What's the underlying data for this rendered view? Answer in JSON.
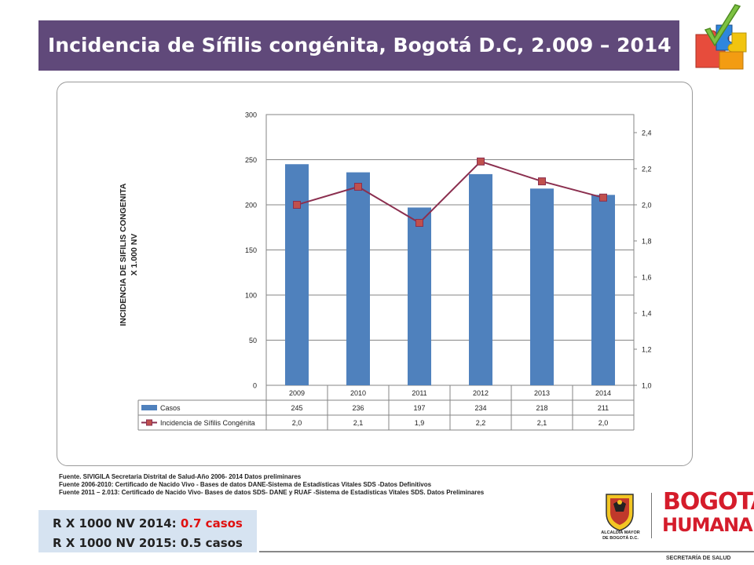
{
  "header": {
    "title": "Incidencia de Sífilis congénita, Bogotá D.C, 2.009 – 2014"
  },
  "colors": {
    "title_bg": "#60497a",
    "bar": "#4f81bd",
    "line": "#8b2f4f",
    "marker": "#c0504d",
    "brand_red": "#d51c2b"
  },
  "chart_data": {
    "type": "bar",
    "title": "",
    "ylabel": "INCIDENCIA DE SIFILIS CONGENITA X 1.000 NV",
    "ylabel_lines": [
      "INCIDENCIA DE SIFILIS CONGENITA",
      "X 1.000 NV"
    ],
    "categories": [
      "2009",
      "2010",
      "2011",
      "2012",
      "2013",
      "2014"
    ],
    "ylim": [
      0,
      300
    ],
    "y_ticks": [
      "0",
      "50",
      "100",
      "150",
      "200",
      "250",
      "300"
    ],
    "y2lim": [
      1.0,
      2.5
    ],
    "y2_ticks": [
      "1,0",
      "1,2",
      "1,4",
      "1,6",
      "1,8",
      "2,0",
      "2,2",
      "2,4"
    ],
    "grid": true,
    "series": [
      {
        "name": "Casos",
        "type": "bar",
        "axis": "left",
        "values": [
          245,
          236,
          197,
          234,
          218,
          211
        ],
        "labels": [
          "245",
          "236",
          "197",
          "234",
          "218",
          "211"
        ]
      },
      {
        "name": "Incidencia de Sífilis Congénita",
        "type": "line",
        "axis": "right",
        "values": [
          2.0,
          2.1,
          1.9,
          2.24,
          2.13,
          2.04
        ],
        "labels": [
          "2,0",
          "2,1",
          "1,9",
          "2,2",
          "2,1",
          "2,0"
        ]
      }
    ]
  },
  "sources": [
    "Fuente. SIVIGILA Secretaria Distrital de Salud-Año 2006- 2014 Datos preliminares",
    "Fuente 2006-2010: Certificado de Nacido Vivo - Bases de datos DANE-Sistema de Estadísticas Vitales SDS -Datos Definitivos",
    "Fuente 2011 – 2.013: Certificado de Nacido Vivo- Bases de datos SDS- DANE y RUAF -Sistema de Estadísticas Vitales SDS. Datos Preliminares"
  ],
  "rates": {
    "line1_prefix": "R X 1000 NV 2014: ",
    "line1_value": "0.7 casos",
    "line2": "R X 1000 NV 2015: 0.5 casos"
  },
  "logos": {
    "alcaldia_line1": "ALCALDÍA MAYOR",
    "alcaldia_line2": "DE BOGOTÁ D.C.",
    "bogota": "BOGOTÁ",
    "humana": "HUMANA",
    "secretaria": "SECRETARÍA DE SALUD"
  }
}
